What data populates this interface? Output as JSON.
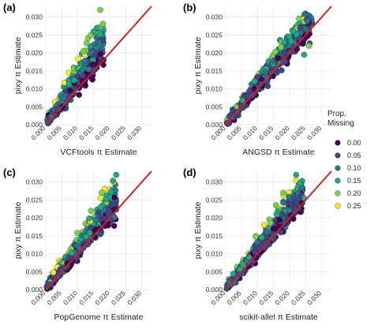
{
  "chart_data": {
    "type": "scatter",
    "ticks": [
      "0.000",
      "0.005",
      "0.010",
      "0.015",
      "0.020",
      "0.025",
      "0.030"
    ],
    "tick_values": [
      0,
      0.005,
      0.01,
      0.015,
      0.02,
      0.025,
      0.03
    ],
    "xlim": [
      0,
      0.033
    ],
    "ylim": [
      0,
      0.033
    ],
    "ylabel": "pixy π Estimate",
    "identity_line_color": "#d42020",
    "legend": {
      "title_line1": "Prop.",
      "title_line2": "Missing",
      "placement": "right",
      "entries": [
        {
          "label": "0.00",
          "color": "#440154"
        },
        {
          "label": "0.05",
          "color": "#414487"
        },
        {
          "label": "0.10",
          "color": "#2a788e"
        },
        {
          "label": "0.15",
          "color": "#22a884"
        },
        {
          "label": "0.20",
          "color": "#7ad151"
        },
        {
          "label": "0.25",
          "color": "#fde725"
        }
      ]
    },
    "panels": [
      {
        "id": "a",
        "letter": "(a)",
        "xlabel": "VCFtools π Estimate",
        "spread": 2.6,
        "xmax": 0.018,
        "outliers": [
          [
            0.017,
            0.032,
            "#7ad151"
          ],
          [
            0.016,
            0.027,
            "#22a884"
          ],
          [
            0.015,
            0.026,
            "#22a884"
          ]
        ]
      },
      {
        "id": "b",
        "letter": "(b)",
        "xlabel": "ANGSD π Estimate",
        "spread": 1.05,
        "xmax": 0.027,
        "outliers": [
          [
            0.0245,
            0.0195,
            "#22a884"
          ],
          [
            0.026,
            0.022,
            "#7ad151"
          ],
          [
            0.021,
            0.026,
            "#22a884"
          ]
        ]
      },
      {
        "id": "c",
        "letter": "(c)",
        "xlabel": "PopGenome π Estimate",
        "spread": 1.5,
        "xmax": 0.022,
        "outliers": [
          [
            0.022,
            0.032,
            "#22a884"
          ],
          [
            0.0175,
            0.027,
            "#7ad151"
          ],
          [
            0.0165,
            0.0215,
            "#414487"
          ]
        ]
      },
      {
        "id": "d",
        "letter": "(d)",
        "xlabel": "scikit-allel π Estimate",
        "spread": 1.2,
        "xmax": 0.024,
        "outliers": [
          [
            0.022,
            0.032,
            "#22a884"
          ],
          [
            0.0245,
            0.0255,
            "#22a884"
          ],
          [
            0.018,
            0.027,
            "#7ad151"
          ]
        ]
      }
    ]
  }
}
